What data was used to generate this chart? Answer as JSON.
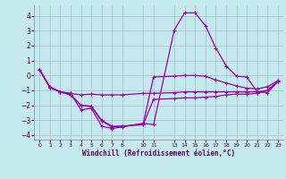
{
  "xlabel": "Windchill (Refroidissement éolien,°C)",
  "bg_color": "#c5eaed",
  "grid_color": "#aabbd0",
  "line_color": "#9900aa",
  "xlim": [
    -0.5,
    23.5
  ],
  "ylim": [
    -4.3,
    4.7
  ],
  "yticks": [
    -4,
    -3,
    -2,
    -1,
    0,
    1,
    2,
    3,
    4
  ],
  "xticks": [
    0,
    1,
    2,
    3,
    4,
    5,
    6,
    7,
    8,
    10,
    11,
    13,
    14,
    15,
    16,
    17,
    18,
    19,
    20,
    21,
    22,
    23
  ],
  "series": [
    {
      "x": [
        0,
        1,
        2,
        3,
        4,
        5,
        6,
        7,
        8,
        10,
        11,
        13,
        14,
        15,
        16,
        17,
        18,
        19,
        20,
        21,
        22,
        23
      ],
      "y": [
        0.4,
        -0.75,
        -1.1,
        -1.2,
        -2.3,
        -2.2,
        -3.4,
        -3.55,
        -3.45,
        -3.2,
        -3.3,
        3.05,
        4.2,
        4.2,
        3.35,
        1.85,
        0.65,
        -0.05,
        -0.1,
        -1.1,
        -1.15,
        -0.4
      ]
    },
    {
      "x": [
        0,
        1,
        2,
        3,
        4,
        5,
        6,
        7,
        8,
        10,
        11,
        13,
        14,
        15,
        16,
        17,
        18,
        19,
        20,
        21,
        22,
        23
      ],
      "y": [
        0.4,
        -0.8,
        -1.1,
        -1.2,
        -1.3,
        -1.25,
        -1.3,
        -1.3,
        -1.3,
        -1.2,
        -1.2,
        -1.15,
        -1.1,
        -1.1,
        -1.1,
        -1.1,
        -1.1,
        -1.1,
        -1.1,
        -1.1,
        -1.0,
        -0.4
      ]
    },
    {
      "x": [
        0,
        1,
        2,
        3,
        4,
        5,
        6,
        7,
        8,
        10,
        11,
        13,
        14,
        15,
        16,
        17,
        18,
        19,
        20,
        21,
        22,
        23
      ],
      "y": [
        0.4,
        -0.8,
        -1.1,
        -1.3,
        -2.0,
        -2.05,
        -3.0,
        -3.4,
        -3.4,
        -3.25,
        -0.1,
        -0.05,
        0.0,
        0.0,
        -0.05,
        -0.3,
        -0.5,
        -0.7,
        -0.85,
        -0.9,
        -0.75,
        -0.35
      ]
    },
    {
      "x": [
        0,
        1,
        2,
        3,
        4,
        5,
        6,
        7,
        8,
        10,
        11,
        13,
        14,
        15,
        16,
        17,
        18,
        19,
        20,
        21,
        22,
        23
      ],
      "y": [
        0.4,
        -0.8,
        -1.1,
        -1.3,
        -2.0,
        -2.1,
        -3.05,
        -3.45,
        -3.4,
        -3.3,
        -1.6,
        -1.55,
        -1.5,
        -1.5,
        -1.45,
        -1.4,
        -1.3,
        -1.25,
        -1.25,
        -1.2,
        -1.0,
        -0.35
      ]
    }
  ]
}
